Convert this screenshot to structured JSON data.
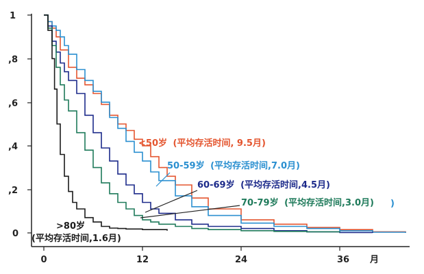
{
  "chart_data": {
    "type": "line",
    "x_unit_label": "月",
    "x_ticks": [
      "0",
      "12",
      "24",
      "36"
    ],
    "y_ticks": [
      "0",
      ",2",
      ",4",
      ",6",
      ",8",
      "1"
    ],
    "xlim": [
      0,
      44
    ],
    "ylim": [
      0,
      1
    ],
    "grid": false,
    "series": [
      {
        "name": "<50岁 (平均存活时间, 9.5月)",
        "label_main": "<50岁",
        "label_detail": "(平均存活时间, 9.5月)",
        "color": "#e4552f",
        "x": [
          0,
          0.5,
          1,
          1.5,
          2,
          3,
          4,
          5,
          6,
          7,
          8,
          9,
          10,
          11,
          12,
          13,
          14,
          15,
          16,
          18,
          20,
          24,
          28,
          32,
          36,
          40,
          44
        ],
        "y": [
          1.0,
          0.97,
          0.94,
          0.9,
          0.84,
          0.76,
          0.71,
          0.68,
          0.64,
          0.59,
          0.54,
          0.5,
          0.47,
          0.43,
          0.4,
          0.35,
          0.3,
          0.26,
          0.22,
          0.16,
          0.11,
          0.06,
          0.04,
          0.025,
          0.015,
          0.005,
          0.0
        ]
      },
      {
        "name": "50-59岁 (平均存活时间,7.0月)",
        "label_main": "50-59岁",
        "label_detail": "(平均存活时间,7.0月)",
        "color": "#2a8fd0",
        "x": [
          0,
          0.5,
          1,
          1.5,
          2,
          2.5,
          3,
          4,
          5,
          6,
          7,
          8,
          9,
          10,
          11,
          12,
          13,
          14,
          16,
          18,
          20,
          24,
          28,
          32,
          36,
          40,
          44
        ],
        "y": [
          1.0,
          0.97,
          0.95,
          0.93,
          0.9,
          0.86,
          0.82,
          0.75,
          0.7,
          0.65,
          0.6,
          0.53,
          0.48,
          0.42,
          0.37,
          0.33,
          0.28,
          0.24,
          0.17,
          0.12,
          0.08,
          0.045,
          0.03,
          0.02,
          0.01,
          0.003,
          0.0
        ]
      },
      {
        "name": "60-69岁 (平均存活时间,4.5月)",
        "label_main": "60-69岁",
        "label_detail": "(平均存活时间,4.5月)",
        "color": "#1c2a8a",
        "x": [
          0,
          0.5,
          1,
          1.5,
          2,
          2.5,
          3,
          4,
          5,
          6,
          7,
          8,
          9,
          10,
          11,
          12,
          13,
          14,
          16,
          18,
          20,
          24,
          28,
          32,
          36,
          40
        ],
        "y": [
          1.0,
          0.95,
          0.88,
          0.83,
          0.78,
          0.74,
          0.7,
          0.64,
          0.54,
          0.46,
          0.39,
          0.33,
          0.27,
          0.22,
          0.18,
          0.14,
          0.11,
          0.09,
          0.06,
          0.04,
          0.03,
          0.02,
          0.01,
          0.005,
          0.002,
          0.0
        ]
      },
      {
        "name": "70-79岁 (平均存活时间,3.0月)",
        "label_main": "70-79岁",
        "label_detail": "(平均存活时间,3.0月)",
        "color": "#1e7a5a",
        "x": [
          0,
          0.5,
          1,
          1.5,
          2,
          2.5,
          3,
          4,
          5,
          6,
          7,
          8,
          9,
          10,
          11,
          12,
          13,
          14,
          16,
          18,
          20,
          24,
          28,
          32,
          36
        ],
        "y": [
          1.0,
          0.94,
          0.86,
          0.76,
          0.68,
          0.61,
          0.56,
          0.46,
          0.38,
          0.3,
          0.23,
          0.18,
          0.14,
          0.11,
          0.08,
          0.06,
          0.05,
          0.04,
          0.03,
          0.02,
          0.015,
          0.01,
          0.007,
          0.005,
          0.002
        ]
      },
      {
        "name": ">80岁 (平均存活时间,1.6月)",
        "label_main": ">80岁",
        "label_detail": "(平均存活时间,1.6月)",
        "color": "#1a1a1a",
        "x": [
          0,
          0.5,
          1,
          1.3,
          1.6,
          2,
          2.5,
          3,
          3.5,
          4,
          5,
          6,
          7,
          8,
          9,
          10,
          12,
          15
        ],
        "y": [
          1.0,
          0.93,
          0.8,
          0.66,
          0.5,
          0.36,
          0.26,
          0.19,
          0.14,
          0.11,
          0.07,
          0.05,
          0.03,
          0.022,
          0.02,
          0.018,
          0.015,
          0.01
        ]
      }
    ]
  },
  "paren_extra": ")"
}
